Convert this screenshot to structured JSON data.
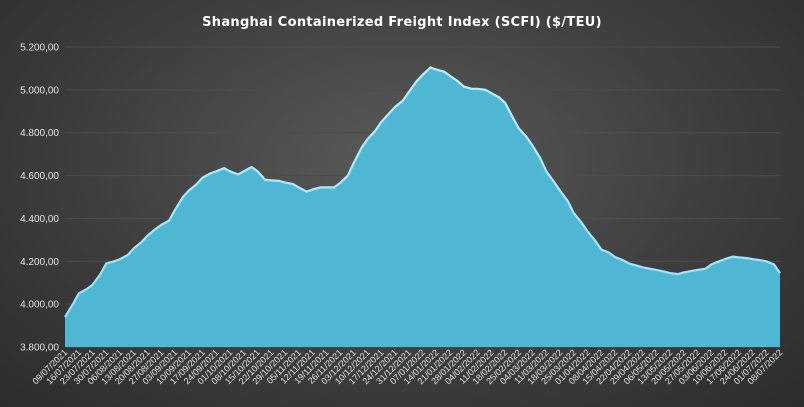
{
  "chart_data": {
    "type": "area",
    "title": "Shanghai Containerized Freight Index  (SCFI) ($/TEU)",
    "xlabel": "",
    "ylabel": "",
    "ylim": [
      3800,
      5200
    ],
    "yticks": [
      3800,
      4000,
      4200,
      4400,
      4600,
      4800,
      5000,
      5200
    ],
    "ytick_labels": [
      "3.800,00",
      "4.000,00",
      "4.200,00",
      "4.400,00",
      "4.600,00",
      "4.800,00",
      "5.000,00",
      "5.200,00"
    ],
    "xtick_labels": [
      "09/07/2021",
      "16/07/2021",
      "23/07/2021",
      "30/07/2021",
      "06/08/2021",
      "13/08/2021",
      "20/08/2021",
      "27/08/2021",
      "03/09/2021",
      "10/09/2021",
      "17/09/2021",
      "24/09/2021",
      "01/10/2021",
      "08/10/2021",
      "15/10/2021",
      "22/10/2021",
      "29/10/2021",
      "05/11/2021",
      "12/11/2021",
      "19/11/2021",
      "26/11/2021",
      "03/12/2021",
      "10/12/2021",
      "17/12/2021",
      "24/12/2021",
      "31/12/2021",
      "07/01/2022",
      "14/01/2022",
      "21/01/2022",
      "28/01/2022",
      "04/02/2022",
      "11/02/2022",
      "18/02/2022",
      "25/02/2022",
      "04/03/2022",
      "11/03/2022",
      "18/03/2022",
      "25/03/2022",
      "01/04/2022",
      "08/04/2022",
      "15/04/2022",
      "22/04/2022",
      "29/04/2022",
      "06/05/2022",
      "13/05/2022",
      "20/05/2022",
      "27/05/2022",
      "03/06/2022",
      "10/06/2022",
      "17/06/2022",
      "24/06/2022",
      "01/07/2022",
      "08/07/2022"
    ],
    "x": [
      "09/07/2021",
      "13/07/2021",
      "16/07/2021",
      "20/07/2021",
      "23/07/2021",
      "27/07/2021",
      "30/07/2021",
      "03/08/2021",
      "06/08/2021",
      "10/08/2021",
      "13/08/2021",
      "17/08/2021",
      "20/08/2021",
      "24/08/2021",
      "27/08/2021",
      "31/08/2021",
      "03/09/2021",
      "07/09/2021",
      "10/09/2021",
      "14/09/2021",
      "17/09/2021",
      "21/09/2021",
      "24/09/2021",
      "28/09/2021",
      "01/10/2021",
      "05/10/2021",
      "08/10/2021",
      "12/10/2021",
      "15/10/2021",
      "19/10/2021",
      "22/10/2021",
      "26/10/2021",
      "29/10/2021",
      "02/11/2021",
      "05/11/2021",
      "09/11/2021",
      "12/11/2021",
      "16/11/2021",
      "19/11/2021",
      "23/11/2021",
      "26/11/2021",
      "30/11/2021",
      "03/12/2021",
      "07/12/2021",
      "10/12/2021",
      "14/12/2021",
      "17/12/2021",
      "21/12/2021",
      "24/12/2021",
      "28/12/2021",
      "31/12/2021",
      "04/01/2022",
      "07/01/2022",
      "11/01/2022",
      "14/01/2022",
      "18/01/2022",
      "21/01/2022",
      "25/01/2022",
      "28/01/2022",
      "01/02/2022",
      "04/02/2022",
      "08/02/2022",
      "11/02/2022",
      "15/02/2022",
      "18/02/2022",
      "22/02/2022",
      "25/02/2022",
      "01/03/2022",
      "04/03/2022",
      "08/03/2022",
      "11/03/2022",
      "15/03/2022",
      "18/03/2022",
      "22/03/2022",
      "25/03/2022",
      "29/03/2022",
      "01/04/2022",
      "05/04/2022",
      "08/04/2022",
      "12/04/2022",
      "15/04/2022",
      "19/04/2022",
      "22/04/2022",
      "26/04/2022",
      "29/04/2022",
      "03/05/2022",
      "06/05/2022",
      "10/05/2022",
      "13/05/2022",
      "17/05/2022",
      "20/05/2022",
      "24/05/2022",
      "27/05/2022",
      "31/05/2022",
      "03/06/2022",
      "07/06/2022",
      "10/06/2022",
      "14/06/2022",
      "17/06/2022",
      "21/06/2022",
      "24/06/2022",
      "28/06/2022",
      "01/07/2022",
      "05/07/2022",
      "08/07/2022"
    ],
    "series": [
      {
        "color": "#4fb7d4",
        "values": [
          3940,
          4000,
          4050,
          4070,
          4090,
          4140,
          4190,
          4200,
          4210,
          4230,
          4260,
          4290,
          4320,
          4350,
          4370,
          4390,
          4440,
          4500,
          4530,
          4560,
          4590,
          4610,
          4620,
          4635,
          4620,
          4605,
          4620,
          4640,
          4620,
          4580,
          4578,
          4575,
          4568,
          4560,
          4545,
          4525,
          4535,
          4545,
          4545,
          4545,
          4565,
          4600,
          4660,
          4730,
          4770,
          4810,
          4850,
          4890,
          4920,
          4950,
          4990,
          5040,
          5070,
          5105,
          5095,
          5085,
          5065,
          5040,
          5015,
          5005,
          5005,
          5000,
          4985,
          4965,
          4940,
          4870,
          4820,
          4780,
          4740,
          4680,
          4620,
          4570,
          4530,
          4480,
          4425,
          4380,
          4340,
          4295,
          4255,
          4240,
          4220,
          4205,
          4190,
          4180,
          4172,
          4165,
          4160,
          4152,
          4145,
          4140,
          4148,
          4155,
          4160,
          4165,
          4185,
          4200,
          4210,
          4222,
          4218,
          4215,
          4210,
          4205,
          4200,
          4185,
          4145
        ]
      }
    ],
    "grid": true,
    "legend": "none"
  }
}
